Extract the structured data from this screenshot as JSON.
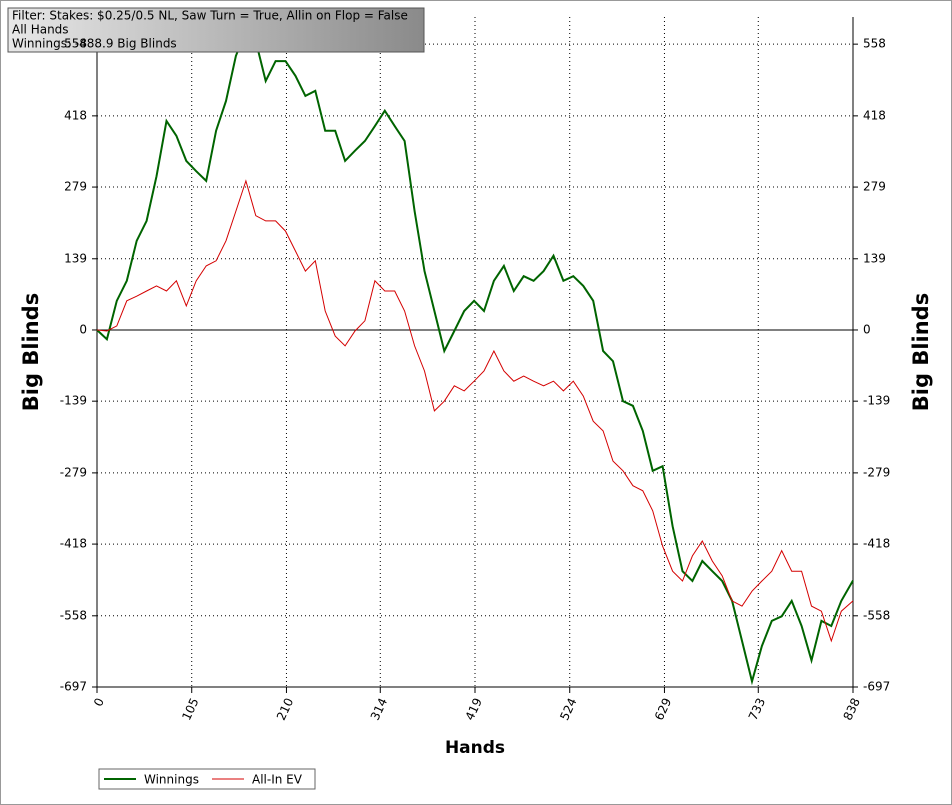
{
  "chart_data": {
    "type": "line",
    "filter_lines": [
      "Filter: Stakes: $0.25/0.5 NL, Saw Turn = True, Allin on Flop = False",
      "All Hands",
      "Winnings: -488.9 Big Blinds"
    ],
    "x_label": "Hands",
    "y_label": "Big Blinds",
    "x": [
      0,
      11,
      22,
      33,
      44,
      55,
      66,
      77,
      88,
      99,
      110,
      121,
      132,
      143,
      154,
      165,
      176,
      187,
      198,
      209,
      220,
      231,
      242,
      253,
      264,
      275,
      286,
      297,
      308,
      319,
      330,
      341,
      352,
      363,
      374,
      385,
      396,
      407,
      418,
      429,
      440,
      451,
      462,
      473,
      484,
      495,
      506,
      517,
      528,
      539,
      550,
      561,
      572,
      583,
      594,
      605,
      616,
      627,
      638,
      649,
      660,
      671,
      682,
      693,
      704,
      715,
      726,
      737,
      748,
      759,
      770,
      781,
      792,
      803,
      814,
      825,
      838
    ],
    "series": [
      {
        "name": "Winnings",
        "color": "#006400",
        "width": 2,
        "values": [
          0,
          -18,
          57,
          96,
          174,
          213,
          300,
          408,
          379,
          330,
          310,
          291,
          389,
          447,
          535,
          584,
          564,
          486,
          525,
          525,
          496,
          457,
          467,
          389,
          389,
          330,
          350,
          369,
          398,
          428,
          398,
          369,
          232,
          115,
          37,
          -41,
          -2,
          37,
          57,
          37,
          96,
          125,
          76,
          105,
          96,
          115,
          145,
          96,
          105,
          86,
          57,
          -41,
          -61,
          -139,
          -148,
          -197,
          -275,
          -266,
          -383,
          -471,
          -490,
          -451,
          -471,
          -490,
          -529,
          -607,
          -686,
          -617,
          -568,
          -559,
          -529,
          -578,
          -645,
          -568,
          -578,
          -529,
          -489
        ]
      },
      {
        "name": "All-In EV",
        "color": "#d40000",
        "width": 1,
        "values": [
          0,
          -2,
          8,
          57,
          66,
          76,
          86,
          76,
          96,
          47,
          96,
          125,
          135,
          174,
          232,
          291,
          223,
          213,
          213,
          193,
          154,
          115,
          135,
          37,
          -12,
          -31,
          -2,
          18,
          96,
          76,
          76,
          37,
          -31,
          -80,
          -158,
          -139,
          -109,
          -119,
          -100,
          -80,
          -41,
          -80,
          -100,
          -90,
          -100,
          -109,
          -100,
          -119,
          -100,
          -129,
          -178,
          -197,
          -256,
          -275,
          -304,
          -314,
          -353,
          -422,
          -471,
          -490,
          -441,
          -412,
          -451,
          -480,
          -529,
          -539,
          -510,
          -490,
          -471,
          -431,
          -471,
          -471,
          -539,
          -549,
          -607,
          -549,
          -529
        ]
      }
    ],
    "xlim": [
      0,
      838
    ],
    "xticks": [
      0,
      105,
      210,
      314,
      419,
      524,
      629,
      733,
      838
    ],
    "ylim": [
      -697,
      611
    ],
    "yticks": [
      -697,
      -558,
      -418,
      -279,
      -139,
      0,
      139,
      279,
      418,
      558
    ],
    "grid": true
  }
}
